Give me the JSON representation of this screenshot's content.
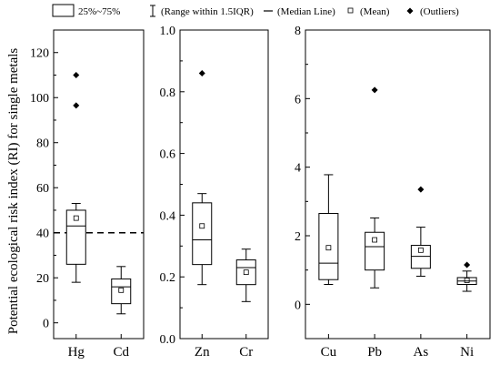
{
  "chart_data": {
    "type": "box",
    "ylabel": "Potential ecological risk index (RI) for single metals",
    "legend": {
      "items": [
        {
          "symbol": "box",
          "label": "25%~75%"
        },
        {
          "symbol": "whisker",
          "label": "(Range within 1.5IQR)"
        },
        {
          "symbol": "median-line",
          "label": "(Median Line)"
        },
        {
          "symbol": "mean",
          "label": "(Mean)"
        },
        {
          "symbol": "outlier",
          "label": "(Outliers)"
        }
      ],
      "placement": "top"
    },
    "panels": [
      {
        "id": "p1",
        "ylim": [
          -7,
          130
        ],
        "yticks": [
          0,
          20,
          40,
          60,
          80,
          100,
          120
        ],
        "yticklabels": [
          "0",
          "20",
          "40",
          "60",
          "80",
          "100",
          "120"
        ],
        "minor_ticks": true,
        "reference_line": {
          "y": 40,
          "style": "dashed"
        },
        "categories": [
          "Hg",
          "Cd"
        ],
        "boxes": [
          {
            "category": "Hg",
            "whisker_low": 18,
            "q1": 26,
            "median": 43,
            "q3": 50,
            "whisker_high": 53,
            "mean": 46.5,
            "outliers": [
              96.5,
              110
            ]
          },
          {
            "category": "Cd",
            "whisker_low": 4,
            "q1": 8.5,
            "median": 16,
            "q3": 19.5,
            "whisker_high": 25,
            "mean": 14.5,
            "outliers": []
          }
        ]
      },
      {
        "id": "p2",
        "ylim": [
          0,
          1.0
        ],
        "yticks": [
          0.0,
          0.2,
          0.4,
          0.6,
          0.8,
          1.0
        ],
        "yticklabels": [
          "0.0",
          "0.2",
          "0.4",
          "0.6",
          "0.8",
          "1.0"
        ],
        "minor_ticks": true,
        "categories": [
          "Zn",
          "Cr"
        ],
        "boxes": [
          {
            "category": "Zn",
            "whisker_low": 0.175,
            "q1": 0.24,
            "median": 0.32,
            "q3": 0.44,
            "whisker_high": 0.47,
            "mean": 0.365,
            "outliers": [
              0.86
            ]
          },
          {
            "category": "Cr",
            "whisker_low": 0.12,
            "q1": 0.175,
            "median": 0.23,
            "q3": 0.255,
            "whisker_high": 0.29,
            "mean": 0.215,
            "outliers": []
          }
        ]
      },
      {
        "id": "p3",
        "ylim": [
          -1,
          8
        ],
        "yticks": [
          0,
          2,
          4,
          6,
          8
        ],
        "yticklabels": [
          "0",
          "2",
          "4",
          "6",
          "8"
        ],
        "minor_ticks": true,
        "categories": [
          "Cu",
          "Pb",
          "As",
          "Ni"
        ],
        "boxes": [
          {
            "category": "Cu",
            "whisker_low": 0.58,
            "q1": 0.72,
            "median": 1.2,
            "q3": 2.65,
            "whisker_high": 3.78,
            "mean": 1.65,
            "outliers": []
          },
          {
            "category": "Pb",
            "whisker_low": 0.48,
            "q1": 1.0,
            "median": 1.68,
            "q3": 2.1,
            "whisker_high": 2.52,
            "mean": 1.88,
            "outliers": [
              6.25
            ]
          },
          {
            "category": "As",
            "whisker_low": 0.82,
            "q1": 1.05,
            "median": 1.4,
            "q3": 1.72,
            "whisker_high": 2.25,
            "mean": 1.58,
            "outliers": [
              3.35
            ]
          },
          {
            "category": "Ni",
            "whisker_low": 0.38,
            "q1": 0.58,
            "median": 0.68,
            "q3": 0.78,
            "whisker_high": 0.97,
            "mean": 0.7,
            "outliers": [
              1.15
            ]
          }
        ]
      }
    ]
  }
}
